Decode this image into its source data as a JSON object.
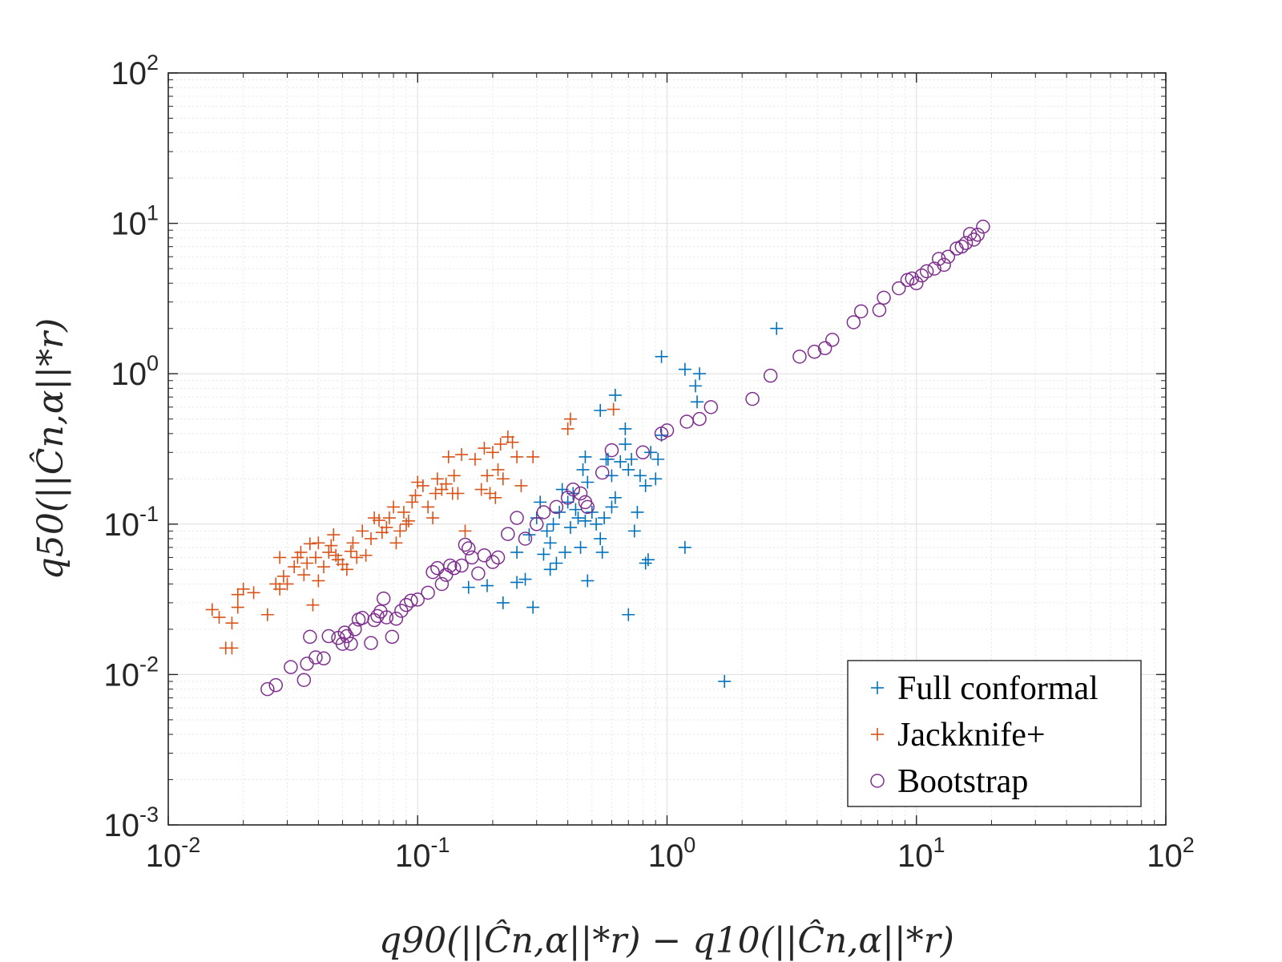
{
  "chart_data": {
    "type": "scatter",
    "xscale": "log",
    "yscale": "log",
    "xlim": [
      0.01,
      100
    ],
    "ylim": [
      0.001,
      100
    ],
    "xticks": [
      {
        "base": "10",
        "exp": "-2"
      },
      {
        "base": "10",
        "exp": "-1"
      },
      {
        "base": "10",
        "exp": "0"
      },
      {
        "base": "10",
        "exp": "1"
      },
      {
        "base": "10",
        "exp": "2"
      }
    ],
    "yticks": [
      {
        "base": "10",
        "exp": "-3"
      },
      {
        "base": "10",
        "exp": "-2"
      },
      {
        "base": "10",
        "exp": "-1"
      },
      {
        "base": "10",
        "exp": "0"
      },
      {
        "base": "10",
        "exp": "1"
      },
      {
        "base": "10",
        "exp": "2"
      }
    ],
    "xlabel": "q90(||Ĉn,α||*r) − q10(||Ĉn,α||*r)",
    "ylabel": "q50(||Ĉn,α||*r)",
    "grid": true,
    "legend_position": "bottom-right",
    "series": [
      {
        "name": "Full conformal",
        "marker": "plus",
        "color": "#0072BD",
        "points": [
          [
            0.16,
            0.038
          ],
          [
            0.19,
            0.039
          ],
          [
            0.22,
            0.03
          ],
          [
            0.25,
            0.041
          ],
          [
            0.27,
            0.043
          ],
          [
            0.29,
            0.028
          ],
          [
            0.32,
            0.063
          ],
          [
            0.34,
            0.05
          ],
          [
            0.36,
            0.055
          ],
          [
            0.33,
            0.09
          ],
          [
            0.3,
            0.11
          ],
          [
            0.28,
            0.085
          ],
          [
            0.31,
            0.14
          ],
          [
            0.35,
            0.1
          ],
          [
            0.37,
            0.12
          ],
          [
            0.38,
            0.17
          ],
          [
            0.4,
            0.14
          ],
          [
            0.42,
            0.16
          ],
          [
            0.44,
            0.11
          ],
          [
            0.46,
            0.23
          ],
          [
            0.47,
            0.28
          ],
          [
            0.48,
            0.19
          ],
          [
            0.5,
            0.12
          ],
          [
            0.52,
            0.1
          ],
          [
            0.54,
            0.08
          ],
          [
            0.56,
            0.11
          ],
          [
            0.58,
            0.27
          ],
          [
            0.6,
            0.21
          ],
          [
            0.62,
            0.15
          ],
          [
            0.65,
            0.26
          ],
          [
            0.68,
            0.34
          ],
          [
            0.7,
            0.23
          ],
          [
            0.72,
            0.27
          ],
          [
            0.74,
            0.09
          ],
          [
            0.76,
            0.12
          ],
          [
            0.78,
            0.21
          ],
          [
            0.82,
            0.18
          ],
          [
            0.86,
            0.3
          ],
          [
            0.9,
            0.2
          ],
          [
            0.92,
            0.27
          ],
          [
            0.95,
            0.39
          ],
          [
            0.54,
            0.57
          ],
          [
            0.62,
            0.72
          ],
          [
            0.68,
            0.43
          ],
          [
            0.95,
            1.3
          ],
          [
            1.18,
            1.07
          ],
          [
            1.3,
            0.83
          ],
          [
            1.32,
            0.65
          ],
          [
            1.35,
            1.0
          ],
          [
            2.75,
            2.0
          ],
          [
            1.18,
            0.07
          ],
          [
            0.84,
            0.058
          ],
          [
            0.82,
            0.055
          ],
          [
            0.7,
            0.025
          ],
          [
            0.48,
            0.042
          ],
          [
            1.7,
            0.009
          ],
          [
            0.39,
            0.065
          ],
          [
            0.45,
            0.07
          ],
          [
            0.41,
            0.095
          ],
          [
            0.25,
            0.065
          ],
          [
            0.34,
            0.075
          ],
          [
            0.55,
            0.065
          ],
          [
            0.6,
            0.13
          ],
          [
            0.57,
            0.27
          ],
          [
            0.43,
            0.125
          ],
          [
            0.47,
            0.105
          ]
        ]
      },
      {
        "name": "Jackknife+",
        "marker": "plus",
        "color": "#D95319",
        "points": [
          [
            0.015,
            0.027
          ],
          [
            0.016,
            0.024
          ],
          [
            0.017,
            0.015
          ],
          [
            0.018,
            0.015
          ],
          [
            0.018,
            0.022
          ],
          [
            0.019,
            0.034
          ],
          [
            0.02,
            0.037
          ],
          [
            0.019,
            0.028
          ],
          [
            0.022,
            0.035
          ],
          [
            0.025,
            0.025
          ],
          [
            0.027,
            0.04
          ],
          [
            0.028,
            0.037
          ],
          [
            0.028,
            0.06
          ],
          [
            0.029,
            0.045
          ],
          [
            0.03,
            0.04
          ],
          [
            0.032,
            0.052
          ],
          [
            0.033,
            0.06
          ],
          [
            0.034,
            0.065
          ],
          [
            0.035,
            0.046
          ],
          [
            0.036,
            0.055
          ],
          [
            0.037,
            0.074
          ],
          [
            0.038,
            0.029
          ],
          [
            0.039,
            0.06
          ],
          [
            0.04,
            0.042
          ],
          [
            0.04,
            0.075
          ],
          [
            0.042,
            0.052
          ],
          [
            0.044,
            0.065
          ],
          [
            0.045,
            0.072
          ],
          [
            0.046,
            0.085
          ],
          [
            0.047,
            0.062
          ],
          [
            0.048,
            0.058
          ],
          [
            0.05,
            0.054
          ],
          [
            0.052,
            0.05
          ],
          [
            0.054,
            0.066
          ],
          [
            0.055,
            0.075
          ],
          [
            0.057,
            0.06
          ],
          [
            0.06,
            0.09
          ],
          [
            0.062,
            0.062
          ],
          [
            0.065,
            0.08
          ],
          [
            0.067,
            0.11
          ],
          [
            0.07,
            0.106
          ],
          [
            0.072,
            0.088
          ],
          [
            0.075,
            0.095
          ],
          [
            0.077,
            0.11
          ],
          [
            0.08,
            0.13
          ],
          [
            0.082,
            0.075
          ],
          [
            0.085,
            0.09
          ],
          [
            0.088,
            0.12
          ],
          [
            0.09,
            0.1
          ],
          [
            0.092,
            0.105
          ],
          [
            0.095,
            0.14
          ],
          [
            0.098,
            0.155
          ],
          [
            0.1,
            0.19
          ],
          [
            0.105,
            0.18
          ],
          [
            0.11,
            0.13
          ],
          [
            0.115,
            0.11
          ],
          [
            0.118,
            0.16
          ],
          [
            0.12,
            0.2
          ],
          [
            0.125,
            0.17
          ],
          [
            0.13,
            0.185
          ],
          [
            0.133,
            0.28
          ],
          [
            0.138,
            0.16
          ],
          [
            0.14,
            0.21
          ],
          [
            0.145,
            0.16
          ],
          [
            0.15,
            0.29
          ],
          [
            0.155,
            0.09
          ],
          [
            0.17,
            0.27
          ],
          [
            0.18,
            0.17
          ],
          [
            0.185,
            0.32
          ],
          [
            0.19,
            0.21
          ],
          [
            0.195,
            0.16
          ],
          [
            0.2,
            0.3
          ],
          [
            0.205,
            0.15
          ],
          [
            0.21,
            0.23
          ],
          [
            0.215,
            0.34
          ],
          [
            0.22,
            0.2
          ],
          [
            0.23,
            0.38
          ],
          [
            0.24,
            0.35
          ],
          [
            0.25,
            0.28
          ],
          [
            0.26,
            0.18
          ],
          [
            0.29,
            0.28
          ],
          [
            0.4,
            0.43
          ],
          [
            0.41,
            0.5
          ],
          [
            0.61,
            0.58
          ]
        ]
      },
      {
        "name": "Bootstrap",
        "marker": "circle",
        "color": "#7E2F8E",
        "points": [
          [
            0.025,
            0.008
          ],
          [
            0.027,
            0.0085
          ],
          [
            0.031,
            0.0112
          ],
          [
            0.035,
            0.0092
          ],
          [
            0.036,
            0.0118
          ],
          [
            0.037,
            0.0178
          ],
          [
            0.039,
            0.013
          ],
          [
            0.042,
            0.0128
          ],
          [
            0.044,
            0.018
          ],
          [
            0.048,
            0.0175
          ],
          [
            0.05,
            0.016
          ],
          [
            0.051,
            0.019
          ],
          [
            0.052,
            0.018
          ],
          [
            0.054,
            0.016
          ],
          [
            0.056,
            0.02
          ],
          [
            0.058,
            0.0232
          ],
          [
            0.06,
            0.0238
          ],
          [
            0.065,
            0.0162
          ],
          [
            0.067,
            0.023
          ],
          [
            0.069,
            0.0245
          ],
          [
            0.071,
            0.0262
          ],
          [
            0.073,
            0.032
          ],
          [
            0.075,
            0.024
          ],
          [
            0.079,
            0.0178
          ],
          [
            0.082,
            0.0235
          ],
          [
            0.086,
            0.0265
          ],
          [
            0.09,
            0.029
          ],
          [
            0.094,
            0.031
          ],
          [
            0.1,
            0.0315
          ],
          [
            0.11,
            0.035
          ],
          [
            0.115,
            0.048
          ],
          [
            0.12,
            0.051
          ],
          [
            0.125,
            0.04
          ],
          [
            0.13,
            0.046
          ],
          [
            0.135,
            0.053
          ],
          [
            0.14,
            0.051
          ],
          [
            0.15,
            0.053
          ],
          [
            0.155,
            0.073
          ],
          [
            0.16,
            0.069
          ],
          [
            0.165,
            0.06
          ],
          [
            0.175,
            0.047
          ],
          [
            0.185,
            0.062
          ],
          [
            0.2,
            0.056
          ],
          [
            0.21,
            0.06
          ],
          [
            0.23,
            0.086
          ],
          [
            0.25,
            0.11
          ],
          [
            0.27,
            0.08
          ],
          [
            0.3,
            0.1
          ],
          [
            0.32,
            0.12
          ],
          [
            0.36,
            0.13
          ],
          [
            0.4,
            0.15
          ],
          [
            0.42,
            0.17
          ],
          [
            0.45,
            0.16
          ],
          [
            0.47,
            0.14
          ],
          [
            0.48,
            0.13
          ],
          [
            0.55,
            0.22
          ],
          [
            0.6,
            0.31
          ],
          [
            0.8,
            0.3
          ],
          [
            0.95,
            0.4
          ],
          [
            1.0,
            0.42
          ],
          [
            1.2,
            0.48
          ],
          [
            1.35,
            0.5
          ],
          [
            1.5,
            0.6
          ],
          [
            2.2,
            0.68
          ],
          [
            2.6,
            0.97
          ],
          [
            3.4,
            1.3
          ],
          [
            3.9,
            1.4
          ],
          [
            4.3,
            1.48
          ],
          [
            4.6,
            1.68
          ],
          [
            5.6,
            2.2
          ],
          [
            6.0,
            2.6
          ],
          [
            7.1,
            2.65
          ],
          [
            7.4,
            3.2
          ],
          [
            8.5,
            3.7
          ],
          [
            9.2,
            4.2
          ],
          [
            9.6,
            4.3
          ],
          [
            10.0,
            4.0
          ],
          [
            10.5,
            4.5
          ],
          [
            11.0,
            4.8
          ],
          [
            11.8,
            5.0
          ],
          [
            12.3,
            5.8
          ],
          [
            12.9,
            5.3
          ],
          [
            13.4,
            6.0
          ],
          [
            14.5,
            6.8
          ],
          [
            15.2,
            7.0
          ],
          [
            15.8,
            7.4
          ],
          [
            16.4,
            8.5
          ],
          [
            17.0,
            7.8
          ],
          [
            17.6,
            8.4
          ],
          [
            18.5,
            9.5
          ]
        ]
      }
    ]
  }
}
